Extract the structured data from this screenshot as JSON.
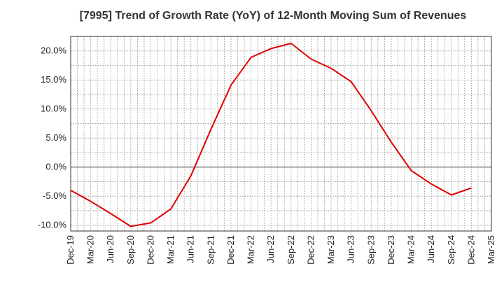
{
  "chart_data": {
    "type": "line",
    "title": "[7995]  Trend of Growth Rate (YoY) of 12-Month Moving Sum of Revenues",
    "xlabel": "",
    "ylabel": "",
    "categories": [
      "Dec-19",
      "Mar-20",
      "Jun-20",
      "Sep-20",
      "Dec-20",
      "Mar-21",
      "Jun-21",
      "Sep-21",
      "Dec-21",
      "Mar-22",
      "Jun-22",
      "Sep-22",
      "Dec-22",
      "Mar-23",
      "Jun-23",
      "Sep-23",
      "Dec-23",
      "Mar-24",
      "Jun-24",
      "Sep-24",
      "Dec-24",
      "Mar-25"
    ],
    "y_tick_labels": [
      "20.0%",
      "15.0%",
      "10.0%",
      "5.0%",
      "0.0%",
      "-5.0%",
      "-10.0%"
    ],
    "y_ticks": [
      20,
      15,
      10,
      5,
      0,
      -5,
      -10
    ],
    "ylim": [
      -11,
      22.5
    ],
    "grid": true,
    "series": [
      {
        "color": "#e00000",
        "x": [
          "Dec-19",
          "Mar-20",
          "Jun-20",
          "Sep-20",
          "Dec-20",
          "Mar-21",
          "Jun-21",
          "Sep-21",
          "Dec-21",
          "Mar-22",
          "Jun-22",
          "Sep-22",
          "Dec-22",
          "Mar-23",
          "Jun-23",
          "Sep-23",
          "Dec-23",
          "Mar-24",
          "Jun-24",
          "Sep-24",
          "Dec-24"
        ],
        "values": [
          -4.0,
          -5.9,
          -8.0,
          -10.2,
          -9.6,
          -7.2,
          -1.5,
          6.5,
          14.1,
          18.9,
          20.4,
          21.3,
          18.6,
          17.0,
          14.7,
          9.7,
          4.3,
          -0.6,
          -2.9,
          -4.8,
          -3.6
        ]
      }
    ]
  }
}
